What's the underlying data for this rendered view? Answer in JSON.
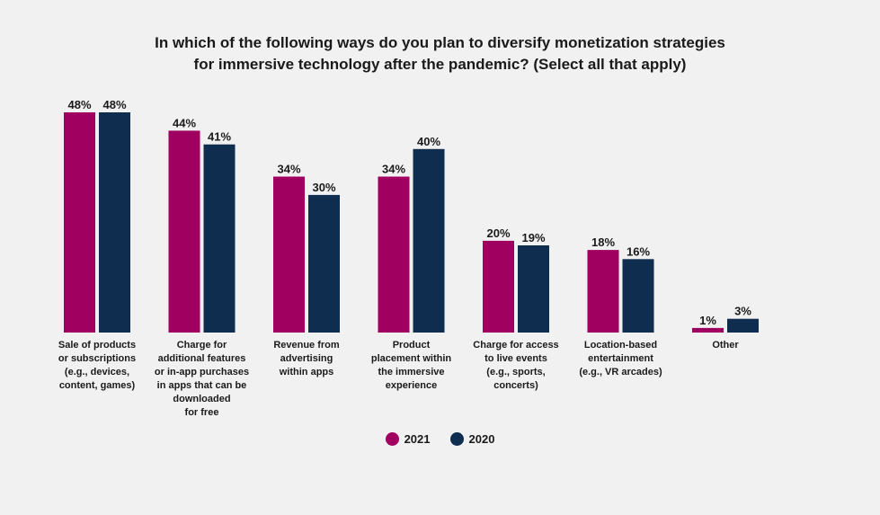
{
  "chart_data": {
    "type": "bar",
    "title_lines": [
      "In which of the following ways do you plan to diversify monetization strategies",
      "for immersive technology after the pandemic? (Select all that apply)"
    ],
    "categories": [
      [
        "Sale of products",
        "or subscriptions",
        "(e.g., devices,",
        "content, games)"
      ],
      [
        "Charge for",
        "additional features",
        "or in-app purchases",
        "in apps that can be",
        "downloaded",
        "for free"
      ],
      [
        "Revenue from",
        "advertising",
        "within apps"
      ],
      [
        "Product",
        "placement within",
        "the immersive",
        "experience"
      ],
      [
        "Charge for access",
        "to live events",
        "(e.g., sports,",
        "concerts)"
      ],
      [
        "Location-based",
        "entertainment",
        "(e.g., VR arcades)"
      ],
      [
        "Other"
      ]
    ],
    "series": [
      {
        "name": "2021",
        "color": "#a0005f",
        "values": [
          48,
          44,
          34,
          34,
          20,
          18,
          1
        ],
        "labels": [
          "48%",
          "44%",
          "34%",
          "34%",
          "20%",
          "18%",
          "1%"
        ]
      },
      {
        "name": "2020",
        "color": "#0f2d4f",
        "values": [
          48,
          41,
          30,
          40,
          19,
          16,
          3
        ],
        "labels": [
          "48%",
          "41%",
          "30%",
          "40%",
          "19%",
          "16%",
          "3%"
        ]
      }
    ],
    "unit": "%",
    "ylim": [
      0,
      50
    ],
    "legend_position": "bottom-center",
    "grid": false
  }
}
